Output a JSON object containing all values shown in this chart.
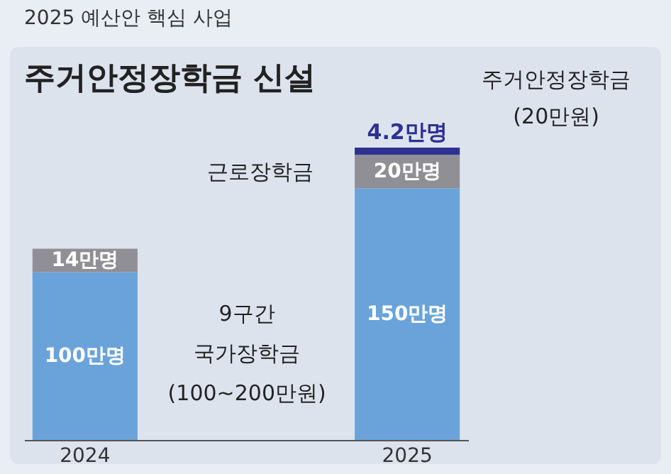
{
  "chart_data": {
    "type": "bar",
    "subtitle": "2025 예산안 핵심 사업",
    "title": "주거안정장학금 신설",
    "categories": [
      "2024",
      "2025"
    ],
    "stacked": true,
    "legend": false,
    "grid": false,
    "series": [
      {
        "name": "9구간 국가장학금 (100~200만원)",
        "color": "#6aa3d9",
        "values": [
          100,
          150
        ],
        "value_labels": [
          "100만명",
          "150만명"
        ]
      },
      {
        "name": "근로장학금",
        "color": "#8f8f95",
        "values": [
          14,
          20
        ],
        "value_labels": [
          "14만명",
          "20만명"
        ]
      },
      {
        "name": "주거안정장학금 (20만원)",
        "color": "#2e3192",
        "values": [
          null,
          4.2
        ],
        "value_labels": [
          null,
          "4.2만명"
        ]
      }
    ]
  }
}
